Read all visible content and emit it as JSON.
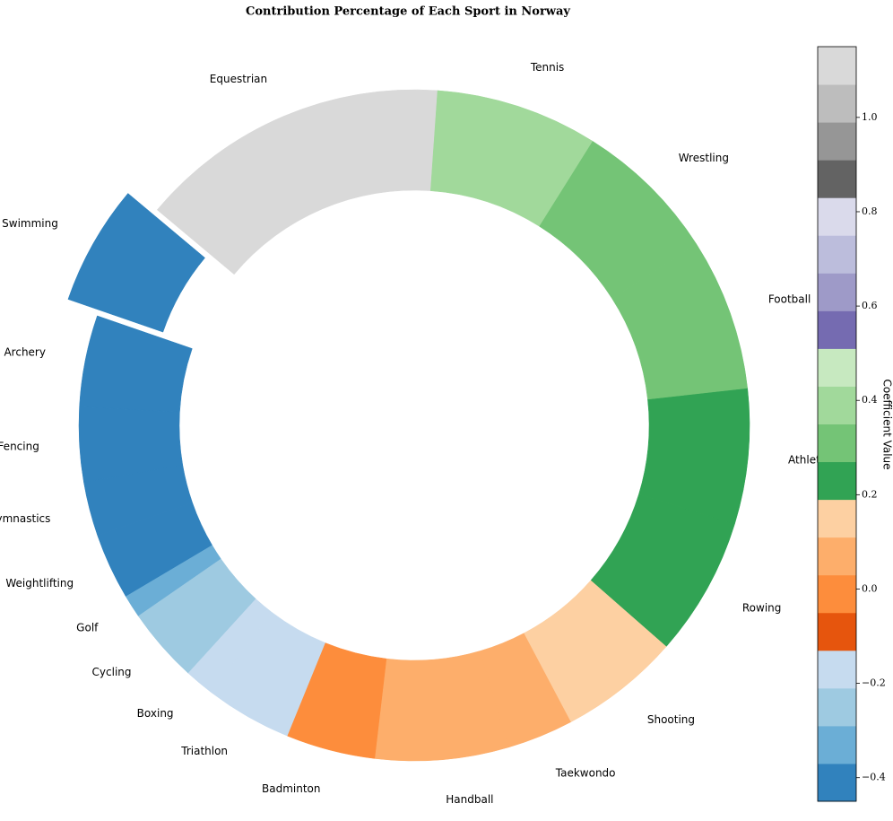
{
  "chart_data": {
    "type": "pie",
    "title": "Contribution Percentage of Each Sport in Norway",
    "categories": [
      "Equestrian",
      "Swimming",
      "Archery",
      "Fencing",
      "Gymnastics",
      "Weightlifting",
      "Golf",
      "Cycling",
      "Boxing",
      "Triathlon",
      "Badminton",
      "Handball",
      "Taekwondo",
      "Shooting",
      "Rowing",
      "Athletics",
      "Football",
      "Wrestling",
      "Tennis"
    ],
    "values": [
      15,
      5.8,
      4.4,
      3.6,
      2.6,
      3.2,
      1.1,
      3.6,
      1.4,
      4.2,
      4.3,
      6.4,
      3.2,
      5.8,
      6.7,
      6.5,
      7.3,
      7.0,
      7.8
    ],
    "colors": [
      "#d9d9d9",
      "#3182bd",
      "#3182bd",
      "#3182bd",
      "#3182bd",
      "#3182bd",
      "#6baed6",
      "#9ecae1",
      "#c6dbef",
      "#c6dbef",
      "#fd8d3c",
      "#fdae6b",
      "#fdae6b",
      "#fdd0a2",
      "#31a354",
      "#31a354",
      "#74c476",
      "#74c476",
      "#a1d99b"
    ],
    "explode": [
      0,
      0.1,
      0,
      0,
      0,
      0,
      0,
      0,
      0,
      0,
      0,
      0,
      0,
      0,
      0,
      0,
      0,
      0,
      0
    ],
    "colorbar": {
      "label": "Coefficient Value",
      "lim": [
        -0.45,
        1.15
      ],
      "ticks": [
        {
          "value": -0.4,
          "label": "−0.4"
        },
        {
          "value": -0.2,
          "label": "−0.2"
        },
        {
          "value": 0.0,
          "label": "0.0"
        },
        0.2,
        0.4,
        0.6,
        0.8,
        {
          "value": 1.0,
          "label": "1.0"
        }
      ],
      "colors": [
        "#3182bd",
        "#6baed6",
        "#9ecae1",
        "#c6dbef",
        "#e6550d",
        "#fd8d3c",
        "#fdae6b",
        "#fdd0a2",
        "#31a354",
        "#74c476",
        "#a1d99b",
        "#c7e9c0",
        "#756bb1",
        "#9e9ac8",
        "#bcbddc",
        "#dadaeb",
        "#636363",
        "#969696",
        "#bdbdbd",
        "#d9d9d9"
      ]
    }
  }
}
